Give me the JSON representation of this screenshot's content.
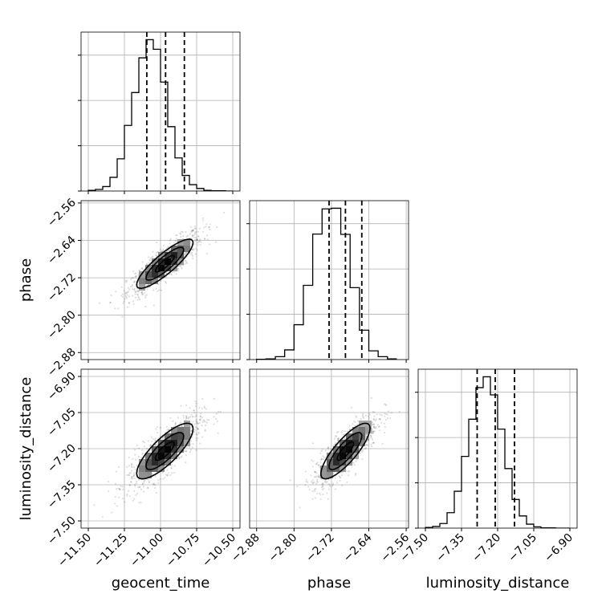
{
  "chart_data": {
    "type": "corner",
    "parameters": [
      "geocent_time",
      "phase",
      "luminosity_distance"
    ],
    "axis_labels": [
      "geocent_time",
      "phase",
      "luminosity_distance"
    ],
    "ranges": [
      [
        -11.55,
        -10.45
      ],
      [
        -2.895,
        -2.555
      ],
      [
        -7.53,
        -6.87
      ]
    ],
    "ticks": [
      {
        "values": [
          -11.5,
          -11.25,
          -11.0,
          -10.75,
          -10.5
        ],
        "labels": [
          "−11.50",
          "−11.25",
          "−11.00",
          "−10.75",
          "−10.50"
        ]
      },
      {
        "values": [
          -2.88,
          -2.8,
          -2.72,
          -2.64,
          -2.56
        ],
        "labels": [
          "−2.88",
          "−2.80",
          "−2.72",
          "−2.64",
          "−2.56"
        ]
      },
      {
        "values": [
          -7.5,
          -7.35,
          -7.2,
          -7.05,
          -6.9
        ],
        "labels": [
          "−7.50",
          "−7.35",
          "−7.20",
          "−7.05",
          "−6.90"
        ]
      }
    ],
    "means": [
      -10.97,
      -2.69,
      -7.21
    ],
    "stds": [
      0.13,
      0.035,
      0.077
    ],
    "quantiles": [
      [
        -11.095,
        -10.965,
        -10.835
      ],
      [
        -2.725,
        -2.69,
        -2.655
      ],
      [
        -7.285,
        -7.21,
        -7.13
      ]
    ],
    "histograms": [
      {
        "bin_edges": [
          -11.5,
          -11.45,
          -11.4,
          -11.35,
          -11.3,
          -11.25,
          -11.2,
          -11.15,
          -11.1,
          -11.05,
          -11.0,
          -10.95,
          -10.9,
          -10.85,
          -10.8,
          -10.75,
          -10.7,
          -10.65,
          -10.6,
          -10.55,
          -10.5
        ],
        "counts": [
          2,
          5,
          14,
          43,
          101,
          206,
          309,
          418,
          475,
          445,
          342,
          202,
          104,
          49,
          20,
          8,
          2,
          1,
          1,
          0
        ]
      },
      {
        "bin_edges": [
          -2.88,
          -2.86,
          -2.84,
          -2.82,
          -2.8,
          -2.78,
          -2.76,
          -2.74,
          -2.72,
          -2.7,
          -2.68,
          -2.66,
          -2.64,
          -2.62,
          -2.6,
          -2.58
        ],
        "counts": [
          1,
          2,
          9,
          30,
          108,
          230,
          389,
          467,
          469,
          388,
          223,
          91,
          27,
          9,
          2
        ]
      },
      {
        "bin_edges": [
          -7.5,
          -7.47,
          -7.44,
          -7.41,
          -7.38,
          -7.35,
          -7.32,
          -7.29,
          -7.26,
          -7.23,
          -7.2,
          -7.17,
          -7.14,
          -7.11,
          -7.08,
          -7.05,
          -7.02,
          -6.99,
          -6.96,
          -6.93,
          -6.9
        ],
        "counts": [
          2,
          5,
          14,
          47,
          112,
          218,
          331,
          427,
          460,
          405,
          301,
          181,
          87,
          37,
          12,
          4,
          1,
          1,
          0,
          0
        ]
      }
    ],
    "correlations": {
      "1-0": 0.86,
      "2-0": 0.8,
      "2-1": 0.82
    },
    "contour_levels": [
      0.5,
      1.0,
      1.5
    ],
    "grid": true
  }
}
